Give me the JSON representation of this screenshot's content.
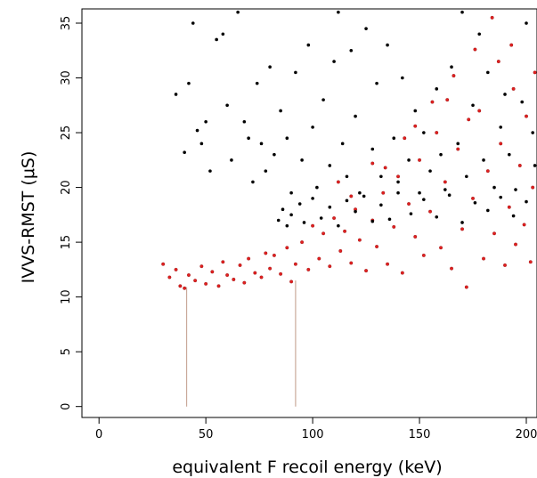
{
  "chart_data": {
    "type": "scatter",
    "title": "",
    "xlabel": "equivalent F recoil energy (keV)",
    "ylabel": "IVVS-RMST (μS)",
    "xlim": [
      -8,
      205
    ],
    "ylim": [
      -1,
      36.3
    ],
    "xticks": [
      0,
      50,
      100,
      150,
      200
    ],
    "xtick_labels": [
      "0",
      "50",
      "100",
      "150",
      "200"
    ],
    "yticks": [
      0,
      5,
      10,
      15,
      20,
      25,
      30,
      35
    ],
    "ytick_labels": [
      "0",
      "5",
      "10",
      "15",
      "20",
      "25",
      "30",
      "35"
    ],
    "grid": false,
    "legend": "none",
    "series": [
      {
        "color": "#000000",
        "points": [
          [
            36,
            28.5
          ],
          [
            40,
            23.2
          ],
          [
            42,
            29.5
          ],
          [
            44,
            35.0
          ],
          [
            46,
            25.2
          ],
          [
            48,
            24.0
          ],
          [
            50,
            26.0
          ],
          [
            52,
            21.5
          ],
          [
            55,
            33.5
          ],
          [
            58,
            34.0
          ],
          [
            60,
            27.5
          ],
          [
            62,
            22.5
          ],
          [
            65,
            36.0
          ],
          [
            68,
            26.0
          ],
          [
            70,
            24.5
          ],
          [
            72,
            20.5
          ],
          [
            74,
            29.5
          ],
          [
            76,
            24.0
          ],
          [
            78,
            21.5
          ],
          [
            80,
            31.0
          ],
          [
            82,
            23.0
          ],
          [
            85,
            27.0
          ],
          [
            88,
            24.5
          ],
          [
            90,
            19.5
          ],
          [
            92,
            30.5
          ],
          [
            95,
            22.5
          ],
          [
            98,
            33.0
          ],
          [
            100,
            25.5
          ],
          [
            102,
            20.0
          ],
          [
            105,
            28.0
          ],
          [
            108,
            22.0
          ],
          [
            110,
            31.5
          ],
          [
            112,
            36.0
          ],
          [
            114,
            24.0
          ],
          [
            116,
            21.0
          ],
          [
            118,
            32.5
          ],
          [
            120,
            26.5
          ],
          [
            122,
            19.5
          ],
          [
            125,
            34.5
          ],
          [
            128,
            23.5
          ],
          [
            130,
            29.5
          ],
          [
            132,
            21.0
          ],
          [
            135,
            33.0
          ],
          [
            138,
            24.5
          ],
          [
            140,
            20.5
          ],
          [
            142,
            30.0
          ],
          [
            145,
            22.5
          ],
          [
            148,
            27.0
          ],
          [
            150,
            19.5
          ],
          [
            152,
            25.0
          ],
          [
            155,
            21.5
          ],
          [
            158,
            29.0
          ],
          [
            160,
            23.0
          ],
          [
            162,
            19.8
          ],
          [
            165,
            31.0
          ],
          [
            168,
            24.0
          ],
          [
            170,
            36.0
          ],
          [
            172,
            21.0
          ],
          [
            175,
            27.5
          ],
          [
            178,
            34.0
          ],
          [
            180,
            22.5
          ],
          [
            182,
            30.5
          ],
          [
            185,
            20.0
          ],
          [
            188,
            25.5
          ],
          [
            190,
            28.5
          ],
          [
            192,
            23.0
          ],
          [
            195,
            19.8
          ],
          [
            198,
            27.8
          ],
          [
            200,
            35.0
          ],
          [
            203,
            25.0
          ],
          [
            204,
            22.0
          ],
          [
            84,
            17.0
          ],
          [
            86,
            18.0
          ],
          [
            88,
            16.5
          ],
          [
            90,
            17.5
          ],
          [
            94,
            18.5
          ],
          [
            96,
            16.8
          ],
          [
            100,
            19.0
          ],
          [
            104,
            17.2
          ],
          [
            108,
            18.2
          ],
          [
            112,
            16.5
          ],
          [
            116,
            18.8
          ],
          [
            120,
            17.8
          ],
          [
            124,
            19.2
          ],
          [
            128,
            16.9
          ],
          [
            132,
            18.4
          ],
          [
            136,
            17.1
          ],
          [
            140,
            19.5
          ],
          [
            146,
            17.6
          ],
          [
            152,
            18.9
          ],
          [
            158,
            17.3
          ],
          [
            164,
            19.3
          ],
          [
            170,
            16.8
          ],
          [
            176,
            18.6
          ],
          [
            182,
            17.9
          ],
          [
            188,
            19.1
          ],
          [
            194,
            17.4
          ],
          [
            200,
            18.7
          ]
        ]
      },
      {
        "color": "#e02020",
        "points": [
          [
            30,
            13.0
          ],
          [
            33,
            11.8
          ],
          [
            36,
            12.5
          ],
          [
            38,
            11.0
          ],
          [
            40,
            10.8
          ],
          [
            42,
            12.0
          ],
          [
            45,
            11.5
          ],
          [
            48,
            12.8
          ],
          [
            50,
            11.2
          ],
          [
            53,
            12.3
          ],
          [
            56,
            11.0
          ],
          [
            58,
            13.2
          ],
          [
            60,
            12.0
          ],
          [
            63,
            11.6
          ],
          [
            66,
            12.9
          ],
          [
            68,
            11.3
          ],
          [
            70,
            13.5
          ],
          [
            73,
            12.2
          ],
          [
            76,
            11.8
          ],
          [
            78,
            14.0
          ],
          [
            80,
            12.6
          ],
          [
            82,
            13.8
          ],
          [
            85,
            12.1
          ],
          [
            88,
            14.5
          ],
          [
            90,
            11.4
          ],
          [
            92,
            13.0
          ],
          [
            95,
            15.0
          ],
          [
            98,
            12.5
          ],
          [
            100,
            16.5
          ],
          [
            103,
            13.5
          ],
          [
            105,
            15.8
          ],
          [
            108,
            12.8
          ],
          [
            110,
            17.2
          ],
          [
            113,
            14.2
          ],
          [
            115,
            16.0
          ],
          [
            118,
            13.1
          ],
          [
            120,
            18.0
          ],
          [
            122,
            15.2
          ],
          [
            125,
            12.4
          ],
          [
            128,
            17.0
          ],
          [
            130,
            14.6
          ],
          [
            133,
            19.5
          ],
          [
            135,
            13.0
          ],
          [
            138,
            16.4
          ],
          [
            140,
            21.0
          ],
          [
            142,
            12.2
          ],
          [
            145,
            18.5
          ],
          [
            148,
            15.5
          ],
          [
            150,
            22.5
          ],
          [
            152,
            13.8
          ],
          [
            155,
            17.8
          ],
          [
            158,
            25.0
          ],
          [
            160,
            14.5
          ],
          [
            162,
            20.5
          ],
          [
            165,
            12.6
          ],
          [
            168,
            23.5
          ],
          [
            170,
            16.2
          ],
          [
            172,
            10.9
          ],
          [
            175,
            19.0
          ],
          [
            178,
            27.0
          ],
          [
            180,
            13.5
          ],
          [
            182,
            21.5
          ],
          [
            184,
            35.5
          ],
          [
            185,
            15.8
          ],
          [
            187,
            31.5
          ],
          [
            188,
            24.0
          ],
          [
            190,
            12.9
          ],
          [
            192,
            18.2
          ],
          [
            194,
            29.0
          ],
          [
            195,
            14.8
          ],
          [
            197,
            22.0
          ],
          [
            199,
            16.6
          ],
          [
            200,
            26.5
          ],
          [
            202,
            13.2
          ],
          [
            203,
            20.0
          ],
          [
            204,
            30.5
          ],
          [
            112,
            20.5
          ],
          [
            128,
            22.2
          ],
          [
            143,
            24.5
          ],
          [
            156,
            27.8
          ],
          [
            166,
            30.2
          ],
          [
            176,
            32.6
          ],
          [
            193,
            33.0
          ],
          [
            118,
            19.2
          ],
          [
            134,
            21.8
          ],
          [
            148,
            25.6
          ],
          [
            163,
            28.0
          ],
          [
            173,
            26.2
          ]
        ]
      }
    ],
    "vertical_lines": [
      {
        "x": 41,
        "y_from": 0,
        "y_to": 10.9,
        "color": "#c9a99a"
      },
      {
        "x": 92,
        "y_from": 0,
        "y_to": 11.5,
        "color": "#c9a99a"
      }
    ]
  }
}
